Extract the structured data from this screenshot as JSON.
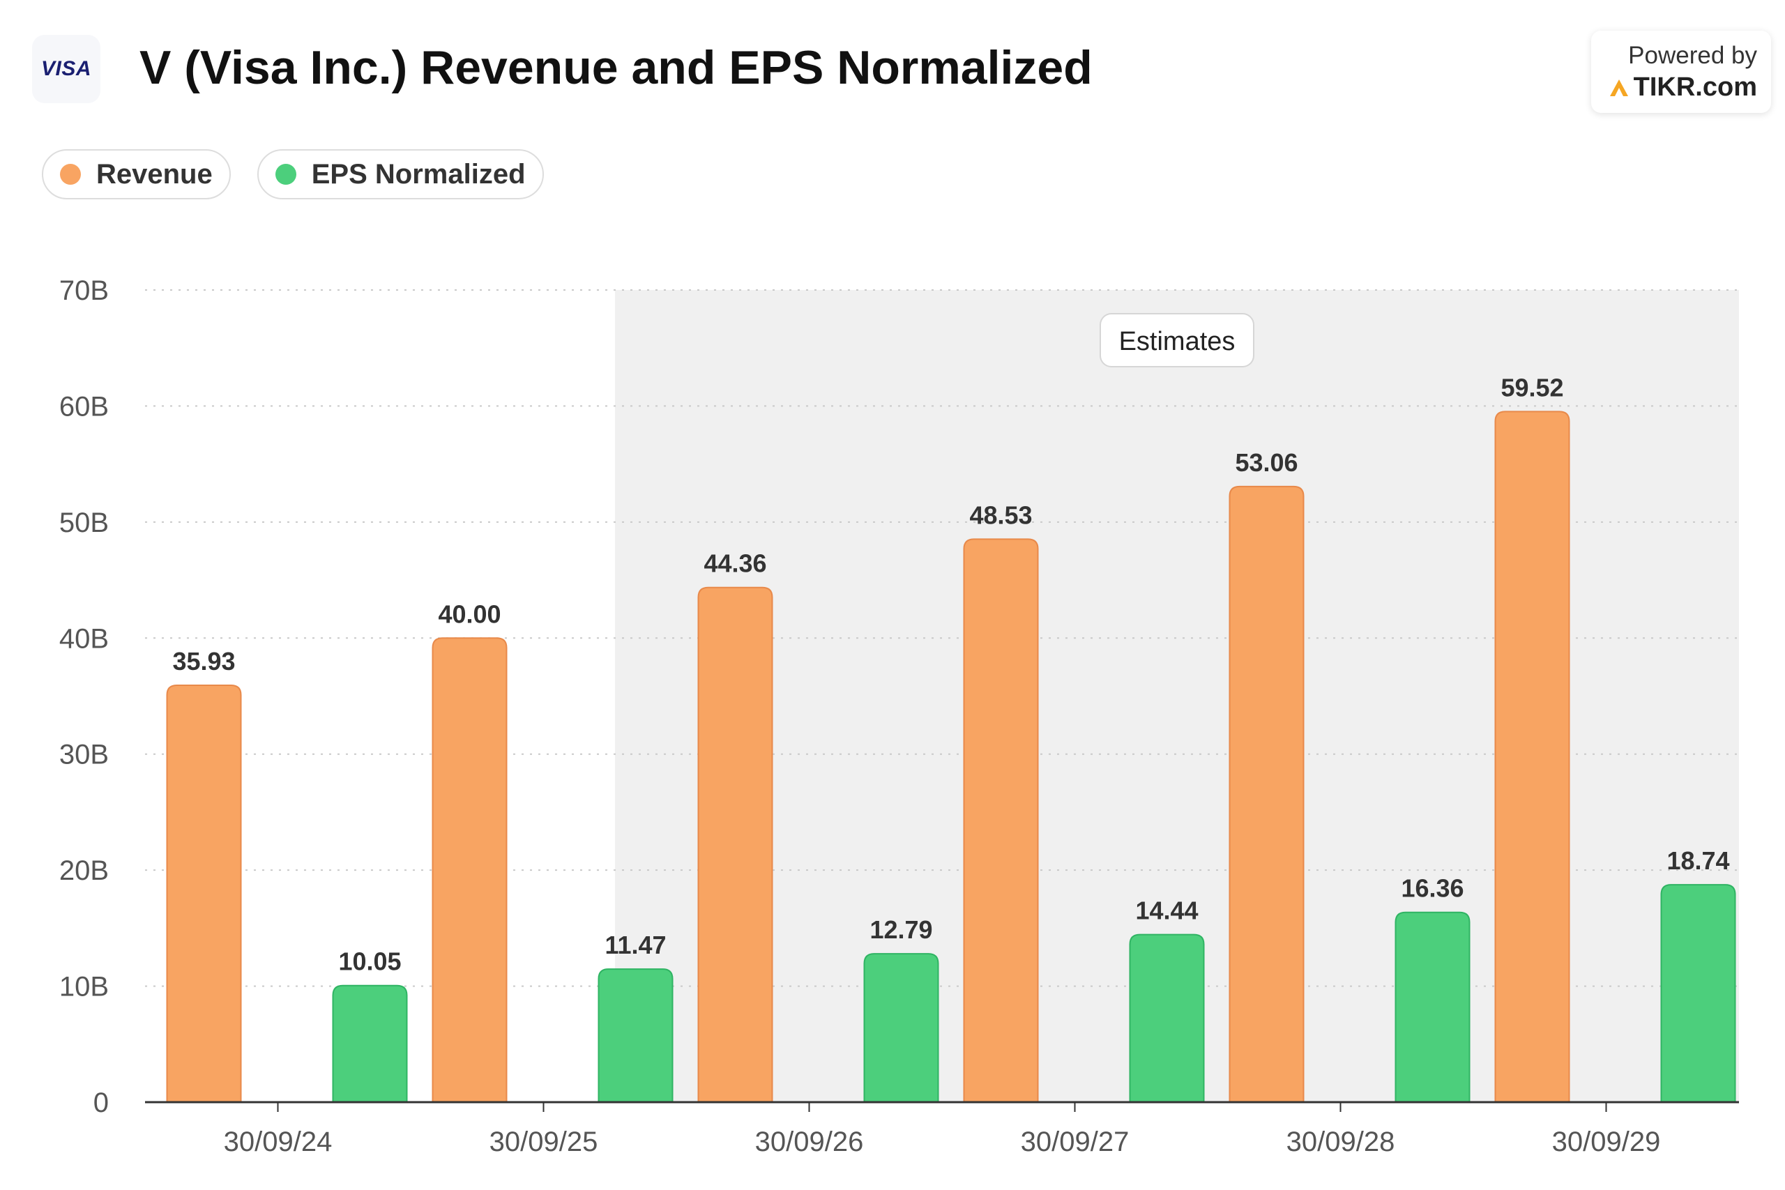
{
  "header": {
    "logo_text": "VISA",
    "title": "V (Visa Inc.) Revenue and EPS Normalized",
    "powered_label": "Powered by",
    "powered_brand": "TIKR.com"
  },
  "legend": [
    {
      "label": "Revenue",
      "color": "#f8a462"
    },
    {
      "label": "EPS Normalized",
      "color": "#4ccf7c"
    }
  ],
  "chart_data": {
    "type": "bar",
    "title": "V (Visa Inc.) Revenue and EPS Normalized",
    "xlabel": "",
    "ylabel": "",
    "categories": [
      "30/09/24",
      "30/09/25",
      "30/09/26",
      "30/09/27",
      "30/09/28",
      "30/09/29"
    ],
    "series": [
      {
        "name": "Revenue",
        "values": [
          35.93,
          40.0,
          44.36,
          48.53,
          53.06,
          59.52
        ],
        "labels": [
          "35.93",
          "40.00",
          "44.36",
          "48.53",
          "53.06",
          "59.52"
        ],
        "color": "#f8a462",
        "border": "#e8894a"
      },
      {
        "name": "EPS Normalized",
        "values": [
          10.05,
          11.47,
          12.79,
          14.44,
          16.36,
          18.74
        ],
        "labels": [
          "10.05",
          "11.47",
          "12.79",
          "14.44",
          "16.36",
          "18.74"
        ],
        "color": "#4ccf7c",
        "border": "#2fb463"
      }
    ],
    "ylim": [
      0,
      70
    ],
    "y_ticks": [
      0,
      10,
      20,
      30,
      40,
      50,
      60,
      70
    ],
    "y_tick_labels": [
      "0",
      "10B",
      "20B",
      "30B",
      "40B",
      "50B",
      "60B",
      "70B"
    ],
    "grid": true,
    "estimates_label": "Estimates",
    "estimates_start_index": 2,
    "estimates_fill": "#f0f0f0"
  }
}
